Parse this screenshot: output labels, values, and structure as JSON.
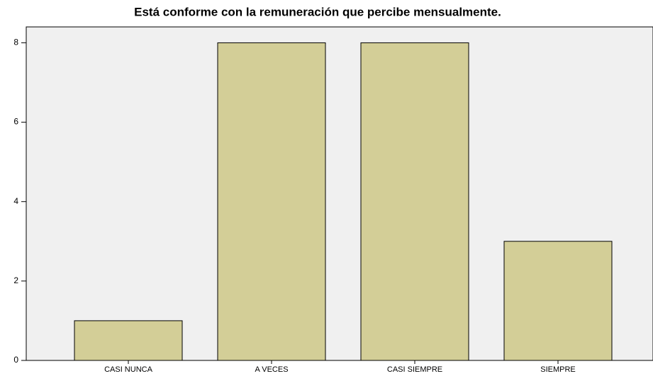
{
  "chart_data": {
    "type": "bar",
    "title": "Está conforme con la remuneración que percibe mensualmente.",
    "categories": [
      "CASI NUNCA",
      "A VECES",
      "CASI SIEMPRE",
      "SIEMPRE"
    ],
    "values": [
      1,
      8,
      8,
      3
    ],
    "color": "#d3ce97",
    "ylim": [
      0,
      8.4
    ],
    "yticks": [
      0,
      2,
      4,
      6,
      8
    ],
    "grid": false
  }
}
